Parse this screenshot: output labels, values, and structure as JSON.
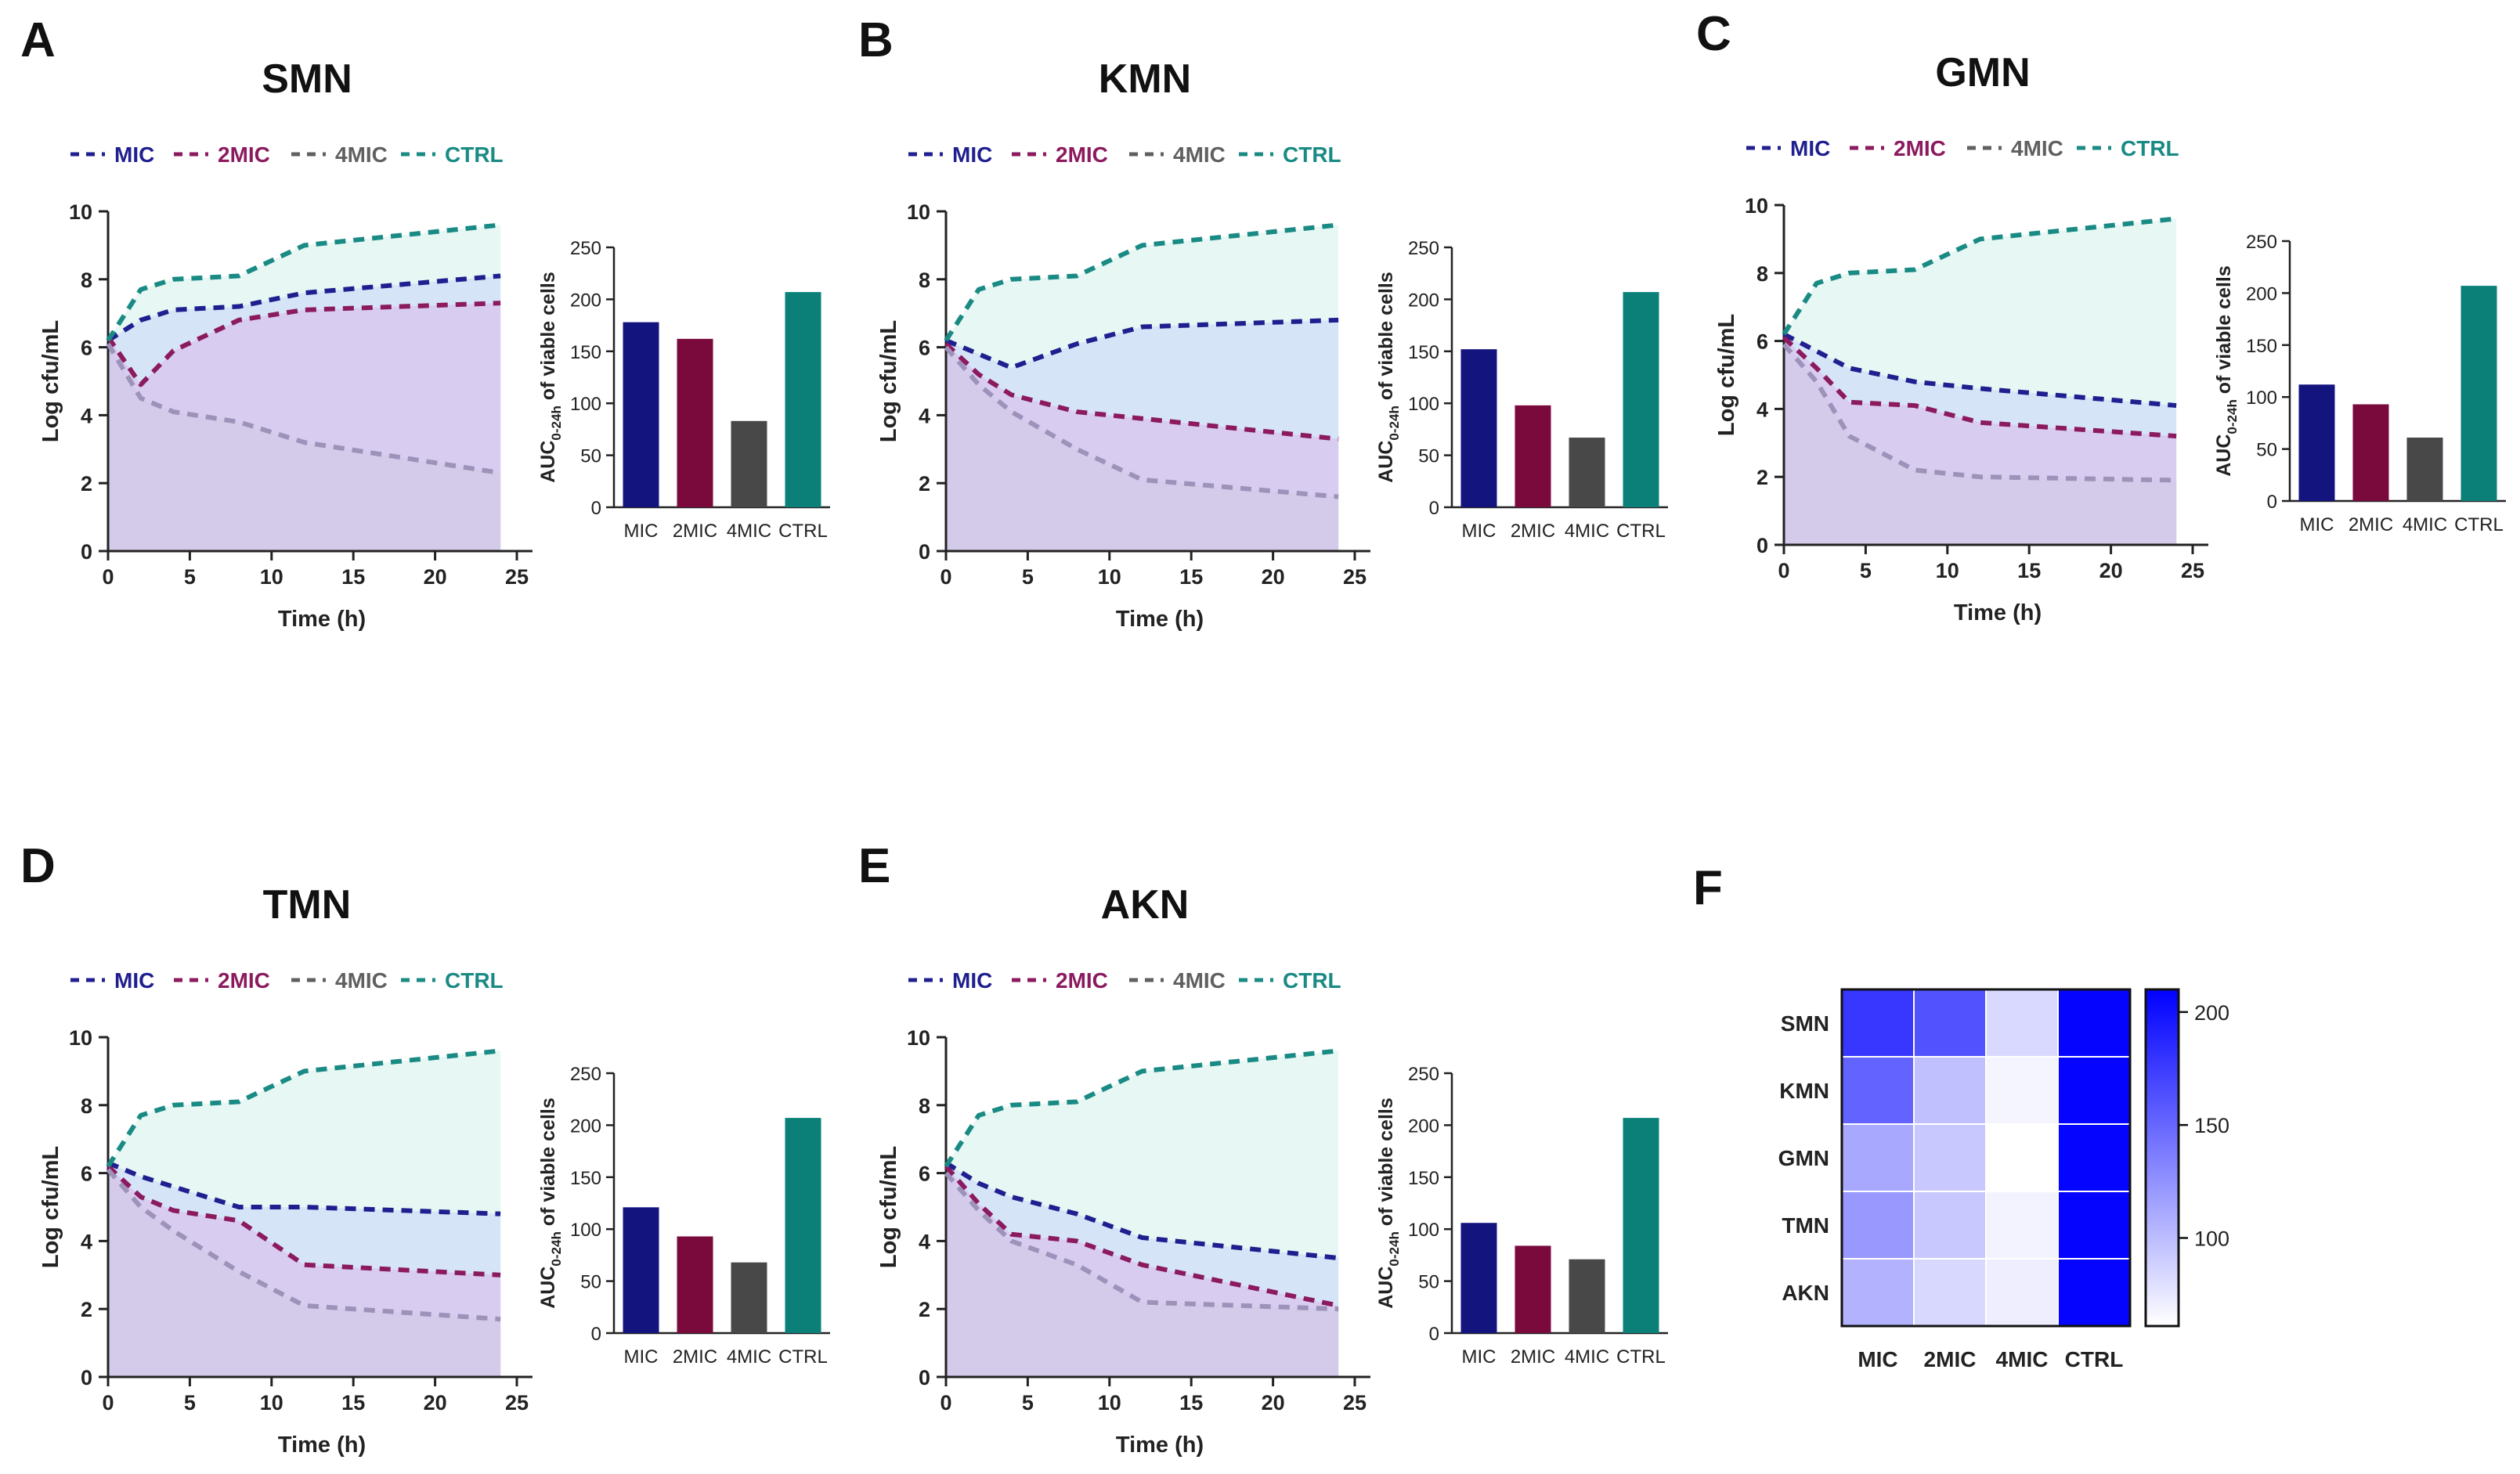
{
  "chart_data": {
    "type": "composite",
    "legend": [
      {
        "key": "MIC",
        "label": "MIC",
        "color": "#1f1f8f"
      },
      {
        "key": "2MIC",
        "label": "2MIC",
        "color": "#8b1a5e"
      },
      {
        "key": "4MIC",
        "label": "4MIC",
        "color": "#606060"
      },
      {
        "key": "CTRL",
        "label": "CTRL",
        "color": "#1a8a84"
      }
    ],
    "bar_colors": {
      "MIC": "#14147f",
      "2MIC": "#7a0a3c",
      "4MIC": "#484848",
      "CTRL": "#0a8078"
    },
    "line": {
      "xlabel": "Time (h)",
      "ylabel": "Log cfu/mL",
      "xlim": [
        0,
        25
      ],
      "ylim": [
        0,
        10
      ],
      "xticks": [
        "0",
        "5",
        "10",
        "15",
        "20",
        "25"
      ],
      "yticks": [
        "0",
        "2",
        "4",
        "6",
        "8",
        "10"
      ],
      "x": [
        0,
        2,
        4,
        8,
        12,
        24
      ]
    },
    "bar": {
      "ylabel_main": "AUC",
      "ylabel_sub": "0-24h",
      "ylabel_rest": " of viable cells",
      "categories": [
        "MIC",
        "2MIC",
        "4MIC",
        "CTRL"
      ],
      "ylim": [
        0,
        250
      ],
      "yticks": [
        "0",
        "50",
        "100",
        "150",
        "200",
        "250"
      ]
    },
    "panels": [
      {
        "letter": "A",
        "title": "SMN",
        "series": [
          {
            "key": "MIC",
            "y": [
              6.2,
              6.8,
              7.1,
              7.2,
              7.6,
              8.1
            ]
          },
          {
            "key": "2MIC",
            "y": [
              6.3,
              4.9,
              5.9,
              6.8,
              7.1,
              7.3
            ]
          },
          {
            "key": "4MIC",
            "y": [
              6.1,
              4.5,
              4.1,
              3.8,
              3.2,
              2.3
            ]
          },
          {
            "key": "CTRL",
            "y": [
              6.2,
              7.7,
              8.0,
              8.1,
              9.0,
              9.6
            ]
          }
        ],
        "auc": [
          178,
          162,
          83,
          207
        ]
      },
      {
        "letter": "B",
        "title": "KMN",
        "series": [
          {
            "key": "MIC",
            "y": [
              6.2,
              5.8,
              5.4,
              6.1,
              6.6,
              6.8
            ]
          },
          {
            "key": "2MIC",
            "y": [
              6.1,
              5.2,
              4.6,
              4.1,
              3.9,
              3.3
            ]
          },
          {
            "key": "4MIC",
            "y": [
              6.0,
              4.9,
              4.1,
              3.0,
              2.1,
              1.6
            ]
          },
          {
            "key": "CTRL",
            "y": [
              6.2,
              7.7,
              8.0,
              8.1,
              9.0,
              9.6
            ]
          }
        ],
        "auc": [
          152,
          98,
          67,
          207
        ]
      },
      {
        "letter": "C",
        "title": "GMN",
        "series": [
          {
            "key": "MIC",
            "y": [
              6.2,
              5.7,
              5.2,
              4.8,
              4.6,
              4.1
            ]
          },
          {
            "key": "2MIC",
            "y": [
              6.1,
              5.2,
              4.2,
              4.1,
              3.6,
              3.2
            ]
          },
          {
            "key": "4MIC",
            "y": [
              5.9,
              4.8,
              3.2,
              2.2,
              2.0,
              1.9
            ]
          },
          {
            "key": "CTRL",
            "y": [
              6.2,
              7.7,
              8.0,
              8.1,
              9.0,
              9.6
            ]
          }
        ],
        "auc": [
          112,
          93,
          61,
          207
        ]
      },
      {
        "letter": "D",
        "title": "TMN",
        "series": [
          {
            "key": "MIC",
            "y": [
              6.3,
              5.9,
              5.6,
              5.0,
              5.0,
              4.8
            ]
          },
          {
            "key": "2MIC",
            "y": [
              6.2,
              5.3,
              4.9,
              4.6,
              3.3,
              3.0
            ]
          },
          {
            "key": "4MIC",
            "y": [
              6.1,
              5.0,
              4.3,
              3.1,
              2.1,
              1.7
            ]
          },
          {
            "key": "CTRL",
            "y": [
              6.2,
              7.7,
              8.0,
              8.1,
              9.0,
              9.6
            ]
          }
        ],
        "auc": [
          121,
          93,
          68,
          207
        ]
      },
      {
        "letter": "E",
        "title": "AKN",
        "series": [
          {
            "key": "MIC",
            "y": [
              6.3,
              5.7,
              5.3,
              4.8,
              4.1,
              3.5
            ]
          },
          {
            "key": "2MIC",
            "y": [
              6.2,
              5.1,
              4.2,
              4.0,
              3.3,
              2.1
            ]
          },
          {
            "key": "4MIC",
            "y": [
              6.0,
              4.9,
              4.0,
              3.3,
              2.2,
              2.0
            ]
          },
          {
            "key": "CTRL",
            "y": [
              6.2,
              7.7,
              8.0,
              8.1,
              9.0,
              9.6
            ]
          }
        ],
        "auc": [
          106,
          84,
          71,
          207
        ]
      }
    ],
    "heatmap": {
      "letter": "F",
      "rows": [
        "SMN",
        "KMN",
        "GMN",
        "TMN",
        "AKN"
      ],
      "cols": [
        "MIC",
        "2MIC",
        "4MIC",
        "CTRL"
      ],
      "values": [
        [
          178,
          162,
          83,
          207
        ],
        [
          152,
          98,
          67,
          207
        ],
        [
          112,
          93,
          61,
          207
        ],
        [
          121,
          93,
          68,
          207
        ],
        [
          106,
          84,
          71,
          207
        ]
      ],
      "vmin": 61,
      "vmax": 210,
      "color_low": "#ffffff",
      "color_high": "#0000ff",
      "colorbar_ticks": [
        "100",
        "150",
        "200"
      ]
    }
  }
}
